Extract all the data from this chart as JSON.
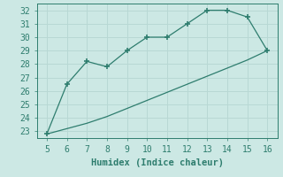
{
  "x": [
    5,
    6,
    7,
    8,
    9,
    10,
    11,
    12,
    13,
    14,
    15,
    16
  ],
  "y_curve": [
    22.8,
    26.5,
    28.2,
    27.8,
    29.0,
    30.0,
    30.0,
    31.0,
    32.0,
    32.0,
    31.5,
    29.0
  ],
  "y_line": [
    22.8,
    23.2,
    23.6,
    24.1,
    24.7,
    25.3,
    25.9,
    26.5,
    27.1,
    27.7,
    28.3,
    29.0
  ],
  "xlabel": "Humidex (Indice chaleur)",
  "ylim": [
    22.5,
    32.5
  ],
  "xlim": [
    4.5,
    16.5
  ],
  "yticks": [
    23,
    24,
    25,
    26,
    27,
    28,
    29,
    30,
    31,
    32
  ],
  "xticks": [
    5,
    6,
    7,
    8,
    9,
    10,
    11,
    12,
    13,
    14,
    15,
    16
  ],
  "line_color": "#2e7d6e",
  "bg_color": "#cce8e4",
  "grid_color": "#b8d8d4",
  "font_color": "#2e7d6e",
  "tick_fontsize": 7,
  "xlabel_fontsize": 7.5
}
